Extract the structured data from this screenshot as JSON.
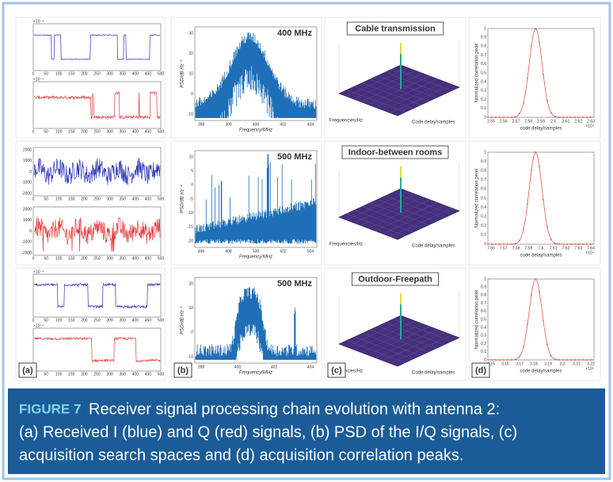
{
  "figure": {
    "label": "FIGURE 7",
    "caption_lines": [
      "Receiver signal processing chain evolution with antenna 2:",
      "(a) Received I (blue) and Q (red) signals, (b) PSD of the I/Q signals, (c)",
      "acquisition search spaces and (d) acquisition correlation peaks."
    ]
  },
  "panel_labels": [
    "(a)",
    "(b)",
    "(c)",
    "(d)"
  ],
  "iq": {
    "exponent": "×10⁻⁴",
    "xticks": [
      "0",
      "50",
      "100",
      "150",
      "200",
      "250",
      "300",
      "350",
      "400",
      "450",
      "500"
    ],
    "middle_yticks": [
      "2000",
      "1000",
      "0",
      "-1000",
      "-2000"
    ]
  },
  "psd": {
    "ylabel": "PSD/dB Hz⁻¹",
    "xlabel": "Frequency/MHz",
    "plots": [
      {
        "title": "400 MHz",
        "xticks": [
          "398",
          "399",
          "400",
          "402",
          "404"
        ],
        "yticks": [
          "30",
          "20",
          "10",
          "0",
          "-10"
        ]
      },
      {
        "title": "500 MHz",
        "xticks": [
          "496",
          "498",
          "500",
          "502",
          "504"
        ],
        "yticks": [
          "10",
          "5",
          "0",
          "-5",
          "-10",
          "-15",
          "-20"
        ]
      },
      {
        "title": "500 MHz",
        "xticks": [
          "398",
          "400",
          "402",
          "404"
        ],
        "yticks": [
          "20",
          "10",
          "0",
          "-10"
        ]
      }
    ]
  },
  "search": {
    "xlabel": "Code delay/samples",
    "ylabel": "Frequencies/Hz",
    "plots": [
      {
        "title": "Cable transmission"
      },
      {
        "title": "Indoor-between rooms"
      },
      {
        "title": "Outdoor-Freepath"
      }
    ]
  },
  "peaks": {
    "ylabel": "Normalized correlation peak",
    "xlabel": "code delay/samples",
    "yticks": [
      "0",
      "0.1",
      "0.2",
      "0.3",
      "0.4",
      "0.5",
      "0.6",
      "0.7",
      "0.8",
      "0.9",
      "1"
    ],
    "plots": [
      {
        "exponent": "×10⁴",
        "xticks": [
          "2.55",
          "2.56",
          "2.57",
          "2.58",
          "2.59",
          "2.6",
          "2.61",
          "2.62",
          "2.63"
        ]
      },
      {
        "exponent": "×10⁴",
        "xticks": [
          "7.56",
          "7.57",
          "7.58",
          "7.59",
          "7.6",
          "7.61",
          "7.62",
          "7.63",
          "7.64"
        ]
      },
      {
        "exponent": "×10⁴",
        "xticks": [
          "3.15",
          "3.16",
          "3.17",
          "3.18",
          "3.19",
          "3.2",
          "3.21",
          "3.22"
        ]
      }
    ]
  }
}
